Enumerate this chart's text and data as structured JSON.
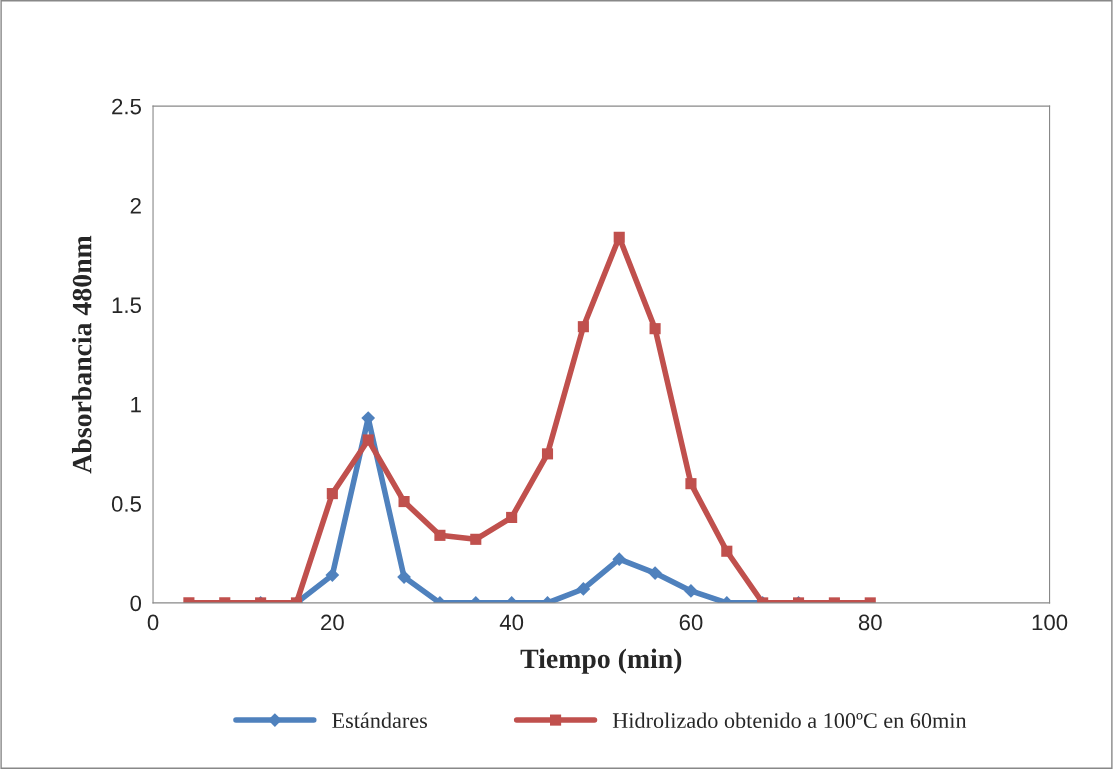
{
  "chart_data": {
    "type": "line",
    "xlabel": "Tiempo (min)",
    "ylabel": "Absorbancia 480nm",
    "x": [
      4,
      8,
      12,
      16,
      20,
      24,
      28,
      32,
      36,
      40,
      44,
      48,
      52,
      56,
      60,
      64,
      68,
      72,
      76,
      80
    ],
    "series": [
      {
        "name": "Estándares",
        "color": "#4f81bd",
        "marker": "diamond",
        "values": [
          null,
          null,
          0,
          0,
          0.14,
          0.93,
          0.13,
          0,
          0,
          0,
          0,
          0.07,
          0.22,
          0.15,
          0.06,
          0,
          0,
          0,
          null,
          null
        ]
      },
      {
        "name": "Hidrolizado obtenido a 100ºC en 60min",
        "color": "#c0504d",
        "marker": "square",
        "values": [
          0,
          0,
          0,
          0,
          0.55,
          0.82,
          0.51,
          0.34,
          0.32,
          0.43,
          0.75,
          1.39,
          1.84,
          1.38,
          0.6,
          0.26,
          0,
          0,
          0,
          0
        ]
      }
    ],
    "xlim": [
      0,
      100
    ],
    "xticks": [
      0,
      20,
      40,
      60,
      80,
      100
    ],
    "ylim": [
      0,
      2.5
    ],
    "yticks": [
      0,
      0.5,
      1,
      1.5,
      2,
      2.5
    ],
    "grid": false,
    "legend": "bottom",
    "line_style": "solid"
  }
}
